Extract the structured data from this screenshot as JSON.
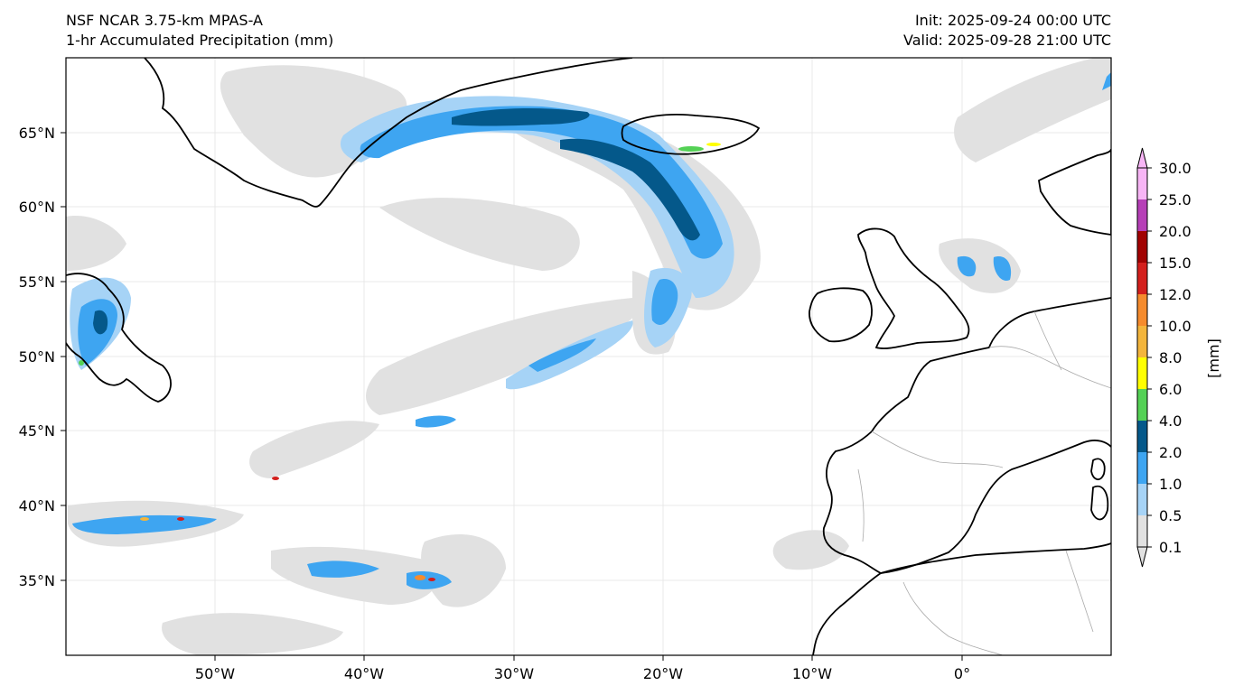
{
  "header": {
    "model": "NSF NCAR 3.75-km MPAS-A",
    "field": "1-hr Accumulated Precipitation (mm)",
    "init": "Init: 2025-09-24 00:00 UTC",
    "valid": "Valid: 2025-09-28 21:00 UTC"
  },
  "map": {
    "lat_labels": [
      "65°N",
      "60°N",
      "55°N",
      "50°N",
      "45°N",
      "40°N",
      "35°N"
    ],
    "lon_labels": [
      "50°W",
      "40°W",
      "30°W",
      "20°W",
      "10°W",
      "0°"
    ],
    "extent": {
      "lon_min": -60,
      "lon_max": 10,
      "lat_min": 30,
      "lat_max": 70
    },
    "background": "#ffffff",
    "coastline_color": "#000000",
    "border_color": "#aaaaaa"
  },
  "colorbar": {
    "unit_label": "[mm]",
    "levels": [
      "0.1",
      "0.5",
      "1.0",
      "2.0",
      "4.0",
      "6.0",
      "8.0",
      "10.0",
      "12.0",
      "15.0",
      "20.0",
      "25.0",
      "30.0"
    ],
    "colors": [
      "#e1e1e1",
      "#a6d3f6",
      "#3ea5f1",
      "#04588a",
      "#54d155",
      "#ffff00",
      "#f3b53c",
      "#f58b2d",
      "#d31f1c",
      "#a10201",
      "#b63fb7",
      "#f7b5f5"
    ]
  }
}
